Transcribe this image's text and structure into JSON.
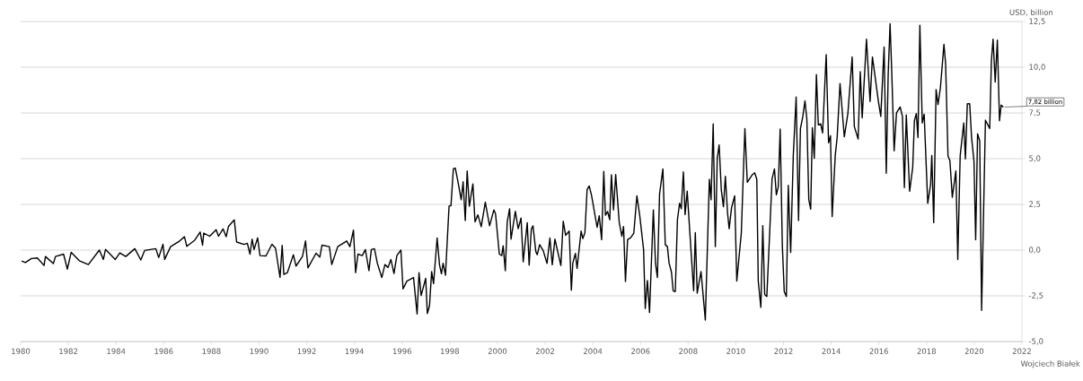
{
  "chart_data": {
    "type": "line",
    "color": "#000000",
    "line_style": "solid",
    "grid": "y",
    "ylabel": "USD, billion",
    "xlim": [
      1980,
      2022
    ],
    "ylim": [
      -5,
      12.5
    ],
    "xticks": [
      1980,
      1982,
      1984,
      1986,
      1988,
      1990,
      1992,
      1994,
      1996,
      1998,
      2000,
      2002,
      2004,
      2006,
      2008,
      2010,
      2012,
      2014,
      2016,
      2018,
      2020,
      2022
    ],
    "yticks": [
      {
        "value": -5,
        "label": "-5,0"
      },
      {
        "value": -2.5,
        "label": "-2,5"
      },
      {
        "value": 0,
        "label": "0,0"
      },
      {
        "value": 2.5,
        "label": "2,5"
      },
      {
        "value": 5,
        "label": "5,0"
      },
      {
        "value": 7.5,
        "label": "7,5"
      },
      {
        "value": 10,
        "label": "10,0"
      },
      {
        "value": 12.5,
        "label": "12,5"
      }
    ],
    "annotations": [
      {
        "text": "7,82 billion",
        "x": 2021.22,
        "y": 7.82
      },
      "Wojciech Białek"
    ],
    "x": [
      1980.04,
      1980.2,
      1980.45,
      1980.7,
      1980.98,
      1981.04,
      1981.37,
      1981.46,
      1981.8,
      1981.96,
      1982.12,
      1982.46,
      1982.84,
      1983.3,
      1983.47,
      1983.56,
      1983.97,
      1984.16,
      1984.41,
      1984.79,
      1985.04,
      1985.2,
      1985.67,
      1985.79,
      1985.97,
      1986.04,
      1986.29,
      1986.67,
      1986.87,
      1986.97,
      1987.3,
      1987.53,
      1987.63,
      1987.68,
      1987.93,
      1988.2,
      1988.3,
      1988.49,
      1988.62,
      1988.72,
      1988.96,
      1989.06,
      1989.37,
      1989.51,
      1989.62,
      1989.71,
      1989.79,
      1989.94,
      1990.04,
      1990.29,
      1990.54,
      1990.69,
      1990.88,
      1990.97,
      1991.04,
      1991.19,
      1991.44,
      1991.55,
      1991.82,
      1991.95,
      1992.05,
      1992.39,
      1992.55,
      1992.64,
      1992.95,
      1993.05,
      1993.3,
      1993.68,
      1993.81,
      1993.96,
      1994.05,
      1994.15,
      1994.33,
      1994.46,
      1994.61,
      1994.71,
      1994.84,
      1994.96,
      1995.15,
      1995.28,
      1995.41,
      1995.53,
      1995.66,
      1995.78,
      1995.95,
      1996.04,
      1996.2,
      1996.48,
      1996.63,
      1996.71,
      1996.8,
      1996.99,
      1997.06,
      1997.15,
      1997.24,
      1997.32,
      1997.47,
      1997.57,
      1997.65,
      1997.72,
      1997.82,
      1997.97,
      1998.05,
      1998.15,
      1998.23,
      1998.33,
      1998.48,
      1998.56,
      1998.65,
      1998.73,
      1998.82,
      1998.97,
      1999.06,
      1999.18,
      1999.32,
      1999.49,
      1999.67,
      1999.85,
      1999.92,
      2000.08,
      2000.18,
      2000.24,
      2000.33,
      2000.41,
      2000.51,
      2000.57,
      2000.75,
      2000.87,
      2000.99,
      2001.08,
      2001.25,
      2001.33,
      2001.42,
      2001.49,
      2001.61,
      2001.67,
      2001.77,
      2001.92,
      2002.08,
      2002.2,
      2002.3,
      2002.41,
      2002.66,
      2002.76,
      2002.86,
      2003.01,
      2003.1,
      2003.16,
      2003.27,
      2003.34,
      2003.51,
      2003.58,
      2003.67,
      2003.76,
      2003.85,
      2003.95,
      2004.18,
      2004.27,
      2004.37,
      2004.46,
      2004.53,
      2004.62,
      2004.71,
      2004.78,
      2004.87,
      2004.96,
      2005.11,
      2005.22,
      2005.29,
      2005.37,
      2005.46,
      2005.59,
      2005.72,
      2005.85,
      2005.97,
      2006.13,
      2006.2,
      2006.29,
      2006.38,
      2006.54,
      2006.63,
      2006.71,
      2006.8,
      2006.94,
      2007.04,
      2007.13,
      2007.2,
      2007.3,
      2007.37,
      2007.46,
      2007.55,
      2007.64,
      2007.71,
      2007.8,
      2007.87,
      2007.96,
      2008.08,
      2008.23,
      2008.3,
      2008.38,
      2008.54,
      2008.72,
      2008.89,
      2008.96,
      2009.05,
      2009.14,
      2009.22,
      2009.3,
      2009.39,
      2009.48,
      2009.56,
      2009.65,
      2009.72,
      2009.82,
      2009.95,
      2010.04,
      2010.23,
      2010.38,
      2010.48,
      2010.69,
      2010.79,
      2010.88,
      2010.94,
      2011.05,
      2011.13,
      2011.21,
      2011.3,
      2011.52,
      2011.62,
      2011.7,
      2011.78,
      2011.86,
      2011.95,
      2012.03,
      2012.12,
      2012.2,
      2012.3,
      2012.41,
      2012.53,
      2012.63,
      2012.71,
      2012.81,
      2012.9,
      2012.98,
      2013.06,
      2013.14,
      2013.21,
      2013.29,
      2013.38,
      2013.46,
      2013.56,
      2013.64,
      2013.79,
      2013.89,
      2013.97,
      2014.04,
      2014.17,
      2014.25,
      2014.37,
      2014.55,
      2014.7,
      2014.88,
      2014.97,
      2015.13,
      2015.22,
      2015.3,
      2015.48,
      2015.63,
      2015.73,
      2015.83,
      2015.98,
      2016.08,
      2016.22,
      2016.31,
      2016.39,
      2016.47,
      2016.54,
      2016.64,
      2016.74,
      2016.89,
      2016.99,
      2017.07,
      2017.15,
      2017.29,
      2017.42,
      2017.49,
      2017.57,
      2017.64,
      2017.72,
      2017.82,
      2017.9,
      2018.05,
      2018.17,
      2018.22,
      2018.3,
      2018.4,
      2018.48,
      2018.58,
      2018.73,
      2018.8,
      2018.9,
      2018.98,
      2019.08,
      2019.23,
      2019.31,
      2019.41,
      2019.56,
      2019.63,
      2019.71,
      2019.81,
      2019.89,
      2019.99,
      2020.06,
      2020.14,
      2020.23,
      2020.31,
      2020.47,
      2020.65,
      2020.72,
      2020.79,
      2020.88,
      2020.97,
      2021.06,
      2021.13,
      2021.22
    ],
    "values": [
      -0.59,
      -0.68,
      -0.46,
      -0.43,
      -0.84,
      -0.35,
      -0.74,
      -0.35,
      -0.22,
      -1.04,
      -0.12,
      -0.58,
      -0.79,
      0.0,
      -0.51,
      0.04,
      -0.51,
      -0.15,
      -0.35,
      0.08,
      -0.54,
      -0.02,
      0.08,
      -0.41,
      0.32,
      -0.51,
      0.19,
      0.5,
      0.73,
      0.21,
      0.54,
      0.99,
      0.27,
      0.93,
      0.76,
      1.12,
      0.76,
      1.16,
      0.73,
      1.3,
      1.65,
      0.44,
      0.31,
      0.37,
      -0.22,
      0.6,
      0.03,
      0.67,
      -0.3,
      -0.32,
      0.32,
      0.11,
      -1.49,
      0.26,
      -1.33,
      -1.23,
      -0.25,
      -0.87,
      -0.35,
      0.5,
      -0.97,
      -0.17,
      -0.38,
      0.27,
      0.19,
      -0.79,
      0.19,
      0.5,
      0.19,
      1.09,
      -1.23,
      -0.22,
      -0.3,
      0.03,
      -1.12,
      0.03,
      0.08,
      -0.71,
      -1.5,
      -0.79,
      -0.95,
      -0.51,
      -1.28,
      -0.3,
      0.0,
      -2.12,
      -1.7,
      -1.5,
      -3.49,
      -1.23,
      -2.48,
      -1.54,
      -3.47,
      -3.04,
      -1.17,
      -1.83,
      0.66,
      -0.8,
      -1.29,
      -0.72,
      -1.37,
      2.4,
      2.43,
      4.44,
      4.49,
      3.84,
      2.75,
      3.74,
      1.62,
      4.33,
      2.4,
      3.62,
      1.54,
      1.93,
      1.28,
      2.62,
      1.33,
      2.2,
      1.98,
      -0.22,
      -0.3,
      0.24,
      -1.13,
      1.54,
      2.26,
      0.6,
      2.12,
      1.17,
      1.75,
      -0.64,
      1.5,
      -0.82,
      1.14,
      1.33,
      -0.08,
      -0.25,
      0.3,
      -0.03,
      -0.72,
      0.66,
      -0.8,
      0.6,
      -0.84,
      1.58,
      0.81,
      1.04,
      -2.19,
      -0.72,
      -0.18,
      -1.0,
      1.04,
      0.63,
      0.96,
      3.3,
      3.51,
      2.97,
      1.25,
      1.88,
      0.57,
      4.3,
      1.91,
      2.11,
      1.66,
      4.12,
      2.2,
      4.13,
      1.5,
      0.76,
      1.29,
      -1.72,
      0.57,
      0.68,
      0.93,
      2.97,
      1.88,
      0.03,
      -3.2,
      -1.66,
      -3.41,
      2.2,
      -0.72,
      -1.5,
      3.06,
      4.44,
      0.3,
      0.19,
      -0.72,
      -1.2,
      -2.22,
      -2.27,
      1.66,
      2.56,
      2.26,
      4.28,
      1.94,
      3.22,
      0.76,
      -2.22,
      0.96,
      -2.35,
      -1.17,
      -3.82,
      3.87,
      2.75,
      6.9,
      0.19,
      5.02,
      5.75,
      3.3,
      2.37,
      4.04,
      2.07,
      1.17,
      2.32,
      2.97,
      -1.69,
      0.93,
      6.65,
      3.71,
      4.12,
      4.23,
      3.87,
      -1.69,
      -3.13,
      1.34,
      -2.43,
      -2.54,
      3.9,
      4.44,
      3.02,
      3.46,
      6.62,
      0.27,
      -2.27,
      -2.54,
      3.54,
      -0.13,
      5.18,
      8.37,
      1.62,
      6.65,
      7.31,
      8.16,
      7.15,
      2.76,
      2.24,
      6.69,
      5.02,
      9.6,
      6.85,
      6.9,
      6.41,
      10.69,
      5.87,
      6.25,
      1.83,
      5.18,
      6.16,
      9.11,
      6.2,
      7.47,
      10.56,
      6.76,
      6.08,
      9.76,
      7.23,
      11.53,
      8.13,
      10.56,
      9.6,
      8.13,
      7.31,
      11.1,
      4.2,
      9.6,
      12.38,
      9.76,
      5.43,
      7.51,
      7.83,
      7.31,
      3.42,
      7.39,
      3.22,
      4.53,
      7.07,
      7.47,
      6.16,
      12.3,
      6.95,
      7.43,
      2.56,
      3.58,
      5.18,
      1.5,
      8.78,
      7.96,
      8.86,
      11.25,
      10.18,
      5.15,
      4.89,
      2.89,
      4.33,
      -0.52,
      5.15,
      6.95,
      4.99,
      8.0,
      8.0,
      6.13,
      4.86,
      0.57,
      6.36,
      5.97,
      -3.3,
      7.11,
      6.65,
      10.35,
      11.53,
      9.19,
      11.48,
      7.07,
      7.93,
      7.82
    ]
  }
}
